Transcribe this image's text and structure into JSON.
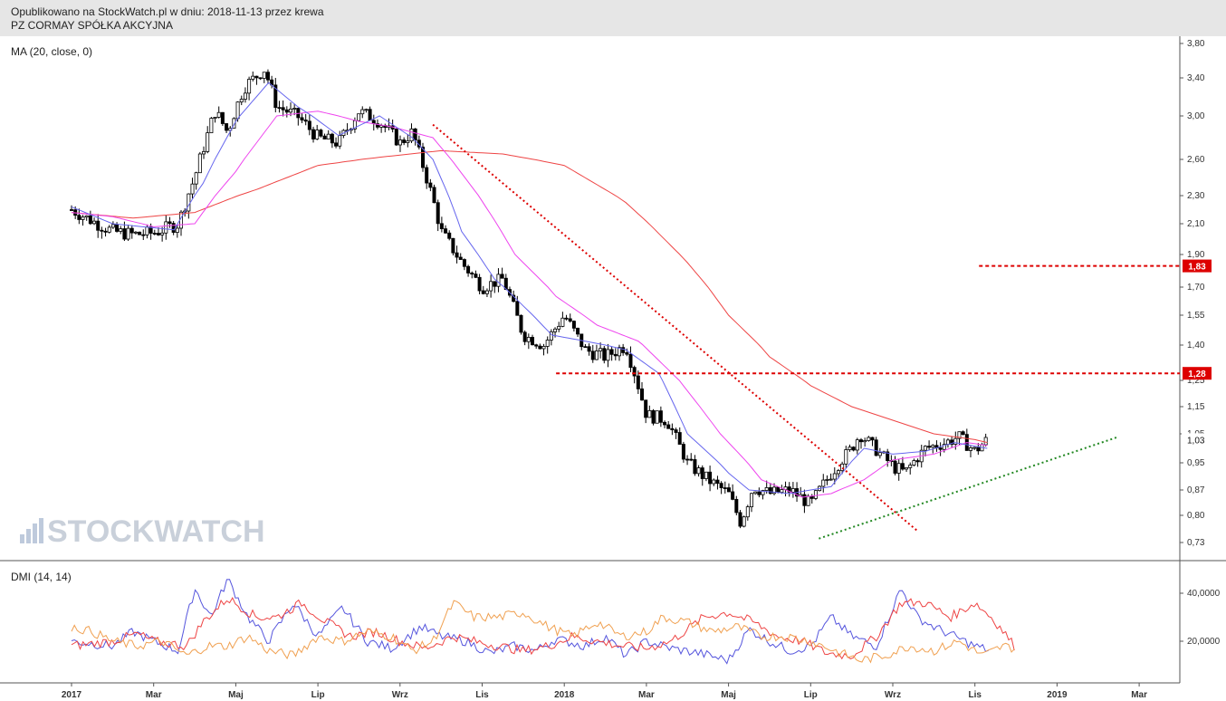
{
  "header": {
    "line1": "Opublikowano na StockWatch.pl w dniu: 2018-11-13 przez krewa",
    "line2": "PZ CORMAY SPÓŁKA AKCYJNA"
  },
  "watermark": "STOCKWATCH",
  "colors": {
    "candle": "#000000",
    "ma_short": "#6666ee",
    "ma_mid": "#ee44ee",
    "ma_long": "#ee4444",
    "resistance": "#dd0000",
    "trend_down": "#dd0000",
    "trend_up": "#228822",
    "dmi_plus": "#5555dd",
    "dmi_minus": "#ee4444",
    "adx": "#f0a050"
  },
  "chart_data": [
    {
      "type": "candlestick",
      "indicator_label": "MA (20, close, 0)",
      "y_ticks": [
        "3,80",
        "3,40",
        "3,00",
        "2,60",
        "2,30",
        "2,10",
        "1,90",
        "1,70",
        "1,55",
        "1,40",
        "1,25",
        "1,15",
        "1,05",
        "0,95",
        "0,87",
        "0,80",
        "0,73"
      ],
      "y_tick_values": [
        3.8,
        3.4,
        3.0,
        2.6,
        2.3,
        2.1,
        1.9,
        1.7,
        1.55,
        1.4,
        1.25,
        1.15,
        1.05,
        0.95,
        0.87,
        0.8,
        0.73
      ],
      "x_labels": [
        "2017",
        "Mar",
        "Maj",
        "Lip",
        "Wrz",
        "Lis",
        "2018",
        "Mar",
        "Maj",
        "Lip",
        "Wrz",
        "Lis",
        "2019",
        "Mar"
      ],
      "x_months": [
        0,
        2,
        4,
        6,
        8,
        10,
        12,
        14,
        16,
        18,
        20,
        22,
        24,
        26
      ],
      "price_anchors": [
        [
          0.0,
          2.2
        ],
        [
          0.5,
          2.12
        ],
        [
          1.0,
          2.05
        ],
        [
          1.5,
          2.03
        ],
        [
          2.0,
          2.04
        ],
        [
          2.6,
          2.1
        ],
        [
          3.0,
          2.45
        ],
        [
          3.5,
          3.05
        ],
        [
          3.8,
          2.85
        ],
        [
          4.2,
          3.3
        ],
        [
          4.7,
          3.5
        ],
        [
          5.0,
          3.1
        ],
        [
          5.5,
          3.0
        ],
        [
          6.0,
          2.8
        ],
        [
          6.5,
          2.75
        ],
        [
          7.0,
          3.05
        ],
        [
          7.5,
          2.95
        ],
        [
          8.0,
          2.75
        ],
        [
          8.3,
          2.85
        ],
        [
          8.6,
          2.5
        ],
        [
          9.0,
          2.05
        ],
        [
          9.5,
          1.85
        ],
        [
          10.0,
          1.7
        ],
        [
          10.5,
          1.75
        ],
        [
          11.0,
          1.45
        ],
        [
          11.5,
          1.4
        ],
        [
          12.0,
          1.55
        ],
        [
          12.5,
          1.38
        ],
        [
          13.0,
          1.35
        ],
        [
          13.5,
          1.4
        ],
        [
          14.0,
          1.12
        ],
        [
          14.5,
          1.1
        ],
        [
          15.0,
          0.95
        ],
        [
          15.5,
          0.9
        ],
        [
          16.0,
          0.86
        ],
        [
          16.3,
          0.78
        ],
        [
          16.6,
          0.88
        ],
        [
          17.0,
          0.86
        ],
        [
          17.5,
          0.87
        ],
        [
          18.0,
          0.83
        ],
        [
          18.5,
          0.92
        ],
        [
          19.0,
          1.0
        ],
        [
          19.2,
          1.05
        ],
        [
          19.7,
          0.98
        ],
        [
          20.0,
          0.94
        ],
        [
          20.3,
          0.92
        ],
        [
          20.8,
          1.0
        ],
        [
          21.3,
          1.02
        ],
        [
          21.6,
          1.04
        ],
        [
          22.0,
          0.99
        ],
        [
          22.3,
          1.03
        ]
      ],
      "ma20_anchors": [
        [
          0.0,
          2.22
        ],
        [
          1.0,
          2.1
        ],
        [
          2.5,
          2.06
        ],
        [
          3.2,
          2.4
        ],
        [
          4.0,
          2.95
        ],
        [
          4.8,
          3.35
        ],
        [
          5.5,
          3.1
        ],
        [
          6.5,
          2.82
        ],
        [
          7.5,
          3.0
        ],
        [
          8.3,
          2.8
        ],
        [
          8.8,
          2.6
        ],
        [
          9.5,
          2.05
        ],
        [
          10.3,
          1.75
        ],
        [
          11.0,
          1.6
        ],
        [
          11.7,
          1.45
        ],
        [
          12.5,
          1.42
        ],
        [
          13.5,
          1.38
        ],
        [
          14.3,
          1.28
        ],
        [
          15.0,
          1.05
        ],
        [
          16.0,
          0.92
        ],
        [
          16.5,
          0.87
        ],
        [
          17.5,
          0.86
        ],
        [
          18.5,
          0.88
        ],
        [
          19.3,
          1.0
        ],
        [
          20.0,
          0.98
        ],
        [
          20.8,
          0.99
        ],
        [
          21.5,
          1.02
        ],
        [
          22.3,
          1.0
        ]
      ],
      "ma_mid_anchors": [
        [
          0.0,
          2.18
        ],
        [
          1.0,
          2.15
        ],
        [
          2.0,
          2.08
        ],
        [
          3.0,
          2.1
        ],
        [
          4.0,
          2.5
        ],
        [
          5.0,
          3.0
        ],
        [
          6.0,
          3.05
        ],
        [
          7.0,
          2.95
        ],
        [
          7.8,
          2.9
        ],
        [
          8.8,
          2.8
        ],
        [
          9.8,
          2.35
        ],
        [
          10.8,
          1.9
        ],
        [
          11.8,
          1.65
        ],
        [
          12.8,
          1.5
        ],
        [
          13.8,
          1.42
        ],
        [
          14.8,
          1.25
        ],
        [
          15.8,
          1.05
        ],
        [
          16.8,
          0.9
        ],
        [
          17.8,
          0.85
        ],
        [
          18.5,
          0.86
        ],
        [
          19.3,
          0.9
        ],
        [
          20.0,
          0.96
        ],
        [
          21.0,
          0.98
        ],
        [
          21.8,
          1.02
        ],
        [
          22.3,
          1.01
        ]
      ],
      "ma_long_anchors": [
        [
          0.0,
          2.18
        ],
        [
          1.5,
          2.14
        ],
        [
          3.0,
          2.18
        ],
        [
          4.5,
          2.35
        ],
        [
          6.0,
          2.55
        ],
        [
          7.5,
          2.62
        ],
        [
          9.0,
          2.68
        ],
        [
          10.5,
          2.65
        ],
        [
          12.0,
          2.55
        ],
        [
          13.5,
          2.25
        ],
        [
          15.0,
          1.85
        ],
        [
          16.0,
          1.55
        ],
        [
          17.0,
          1.35
        ],
        [
          18.0,
          1.23
        ],
        [
          19.0,
          1.15
        ],
        [
          20.0,
          1.1
        ],
        [
          21.0,
          1.05
        ],
        [
          22.0,
          1.03
        ],
        [
          22.3,
          1.02
        ]
      ],
      "levels": [
        {
          "value": 1.83,
          "label": "1,83",
          "from_month": 22.1
        },
        {
          "value": 1.28,
          "label": "1,28",
          "from_month": 11.8
        }
      ],
      "last_price_label": "1,03",
      "last_price": 1.03,
      "trend_down": [
        [
          8.8,
          2.92
        ],
        [
          20.6,
          0.76
        ]
      ],
      "trend_up": [
        [
          18.2,
          0.74
        ],
        [
          25.5,
          1.04
        ]
      ]
    },
    {
      "type": "line",
      "indicator_label": "DMI (14, 14)",
      "y_ticks": [
        "40,0000",
        "20,0000"
      ],
      "y_tick_values": [
        40,
        20
      ],
      "series": [
        {
          "anchors": [
            [
              0,
              20
            ],
            [
              1,
              18
            ],
            [
              1.5,
              24
            ],
            [
              2,
              20
            ],
            [
              2.6,
              16
            ],
            [
              3,
              42
            ],
            [
              3.4,
              30
            ],
            [
              3.8,
              46
            ],
            [
              4.3,
              30
            ],
            [
              4.8,
              20
            ],
            [
              5.4,
              36
            ],
            [
              6,
              22
            ],
            [
              6.6,
              34
            ],
            [
              7.2,
              20
            ],
            [
              7.8,
              17
            ],
            [
              8.5,
              26
            ],
            [
              9,
              22
            ],
            [
              9.6,
              20
            ],
            [
              10.2,
              15
            ],
            [
              10.8,
              18
            ],
            [
              11.3,
              16
            ],
            [
              11.8,
              21
            ],
            [
              12.5,
              18
            ],
            [
              13,
              22
            ],
            [
              13.5,
              14
            ],
            [
              14,
              20
            ],
            [
              14.6,
              17
            ],
            [
              15.3,
              15
            ],
            [
              16,
              12
            ],
            [
              16.5,
              25
            ],
            [
              17,
              20
            ],
            [
              17.5,
              16
            ],
            [
              18,
              18
            ],
            [
              18.5,
              30
            ],
            [
              19,
              22
            ],
            [
              19.6,
              18
            ],
            [
              20.2,
              42
            ],
            [
              20.6,
              30
            ],
            [
              21,
              26
            ],
            [
              21.5,
              22
            ],
            [
              22,
              18
            ],
            [
              22.4,
              16
            ]
          ]
        },
        {
          "anchors": [
            [
              0,
              18
            ],
            [
              1,
              20
            ],
            [
              1.6,
              23
            ],
            [
              2,
              20
            ],
            [
              2.8,
              18
            ],
            [
              3.2,
              28
            ],
            [
              3.8,
              38
            ],
            [
              4.5,
              30
            ],
            [
              5,
              30
            ],
            [
              5.6,
              36
            ],
            [
              6.2,
              28
            ],
            [
              6.8,
              22
            ],
            [
              7.4,
              24
            ],
            [
              8,
              20
            ],
            [
              8.6,
              17
            ],
            [
              9.3,
              22
            ],
            [
              9.8,
              20
            ],
            [
              10.4,
              18
            ],
            [
              11,
              16
            ],
            [
              11.6,
              18
            ],
            [
              12.2,
              22
            ],
            [
              12.8,
              20
            ],
            [
              13.4,
              18
            ],
            [
              14,
              17
            ],
            [
              14.6,
              20
            ],
            [
              15.4,
              30
            ],
            [
              16,
              32
            ],
            [
              16.6,
              28
            ],
            [
              17.2,
              22
            ],
            [
              17.8,
              20
            ],
            [
              18.4,
              15
            ],
            [
              19,
              14
            ],
            [
              19.6,
              22
            ],
            [
              20.2,
              36
            ],
            [
              20.8,
              36
            ],
            [
              21.4,
              30
            ],
            [
              22,
              36
            ],
            [
              22.4,
              30
            ],
            [
              22.7,
              24
            ],
            [
              23.0,
              17
            ]
          ]
        },
        {
          "anchors": [
            [
              0,
              26
            ],
            [
              0.5,
              24
            ],
            [
              1,
              20
            ],
            [
              1.6,
              18
            ],
            [
              2.2,
              20
            ],
            [
              2.8,
              14
            ],
            [
              3.3,
              18
            ],
            [
              3.8,
              18
            ],
            [
              4.3,
              22
            ],
            [
              4.8,
              16
            ],
            [
              5.4,
              14
            ],
            [
              6,
              22
            ],
            [
              6.6,
              20
            ],
            [
              7.2,
              24
            ],
            [
              7.8,
              22
            ],
            [
              8.3,
              16
            ],
            [
              8.8,
              20
            ],
            [
              9.3,
              36
            ],
            [
              9.8,
              30
            ],
            [
              10.4,
              30
            ],
            [
              11,
              32
            ],
            [
              11.6,
              26
            ],
            [
              12.2,
              22
            ],
            [
              12.8,
              28
            ],
            [
              13.4,
              22
            ],
            [
              14,
              24
            ],
            [
              14.4,
              30
            ],
            [
              15,
              28
            ],
            [
              15.6,
              24
            ],
            [
              16.2,
              26
            ],
            [
              16.8,
              22
            ],
            [
              17.4,
              22
            ],
            [
              18,
              20
            ],
            [
              18.6,
              16
            ],
            [
              19.2,
              12
            ],
            [
              19.8,
              14
            ],
            [
              20.4,
              18
            ],
            [
              21,
              16
            ],
            [
              21.6,
              20
            ],
            [
              22.2,
              14
            ],
            [
              22.7,
              18
            ],
            [
              23.0,
              17
            ]
          ]
        }
      ]
    }
  ]
}
